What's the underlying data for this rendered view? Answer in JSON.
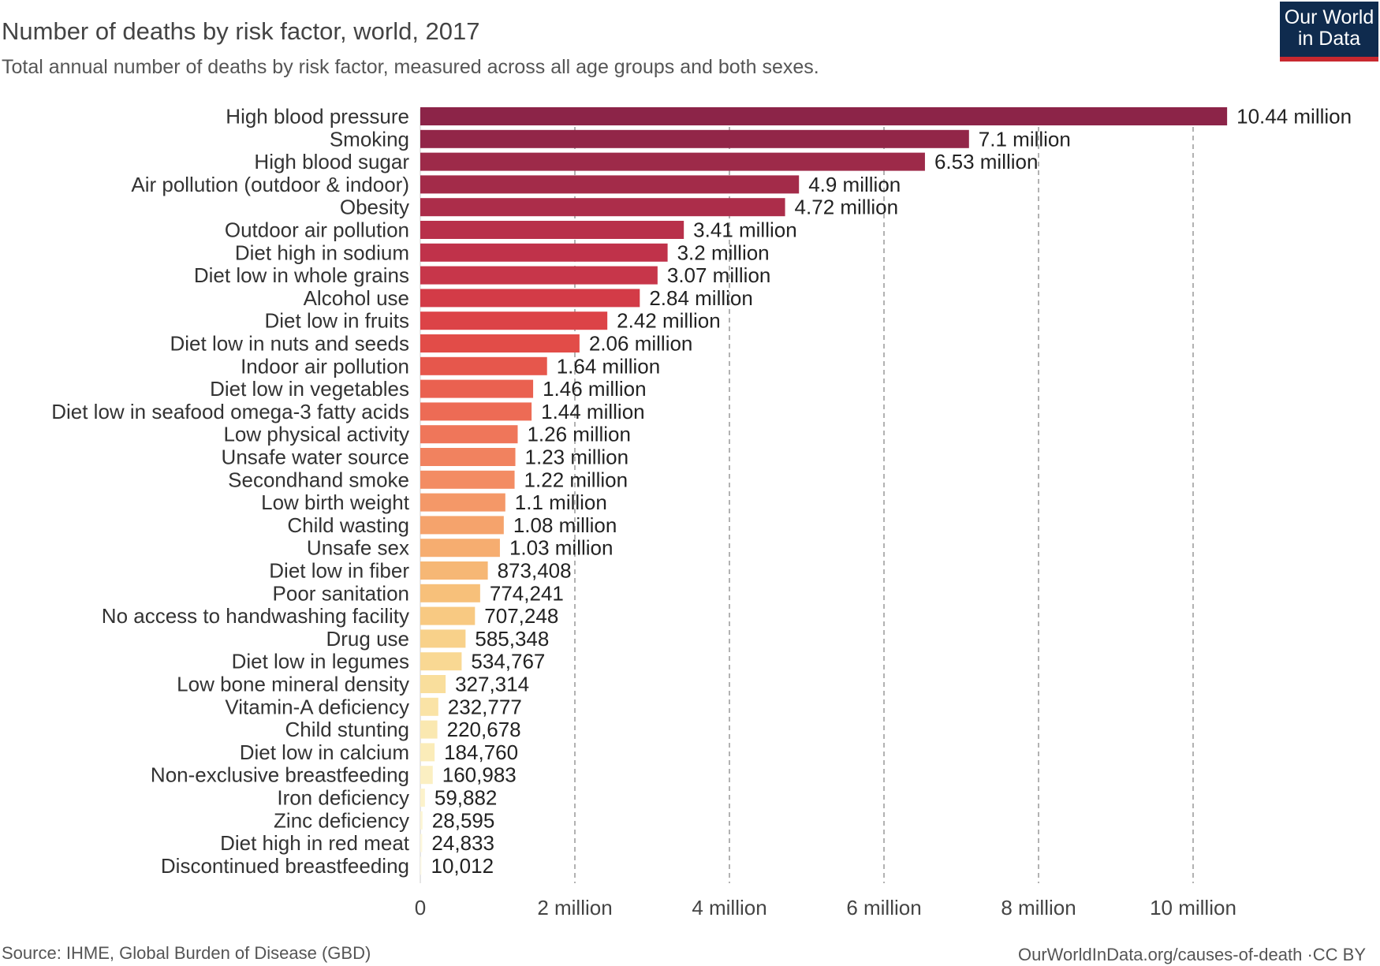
{
  "header": {
    "title": "Number of deaths by risk factor, world, 2017",
    "subtitle": "Total annual number of deaths by risk factor, measured across all age groups and both sexes."
  },
  "logo": {
    "line1": "Our World",
    "line2": "in Data",
    "bg": "#0f2b4e",
    "accent": "#c8282f"
  },
  "footer": {
    "source": "Source: IHME, Global Burden of Disease (GBD)",
    "link": "OurWorldInData.org/causes-of-death ·CC BY"
  },
  "chart_data": {
    "type": "bar",
    "orientation": "horizontal",
    "title": "Number of deaths by risk factor, world, 2017",
    "xlabel": "",
    "ylabel": "",
    "xlim": [
      0,
      11000000
    ],
    "grid": "vertical dashed",
    "x_ticks": [
      0,
      2000000,
      4000000,
      6000000,
      8000000,
      10000000
    ],
    "x_tick_labels": [
      "0",
      "2 million",
      "4 million",
      "6 million",
      "8 million",
      "10 million"
    ],
    "categories": [
      "High blood pressure",
      "Smoking",
      "High blood sugar",
      "Air pollution (outdoor & indoor)",
      "Obesity",
      "Outdoor air pollution",
      "Diet high in sodium",
      "Diet low in whole grains",
      "Alcohol use",
      "Diet low in fruits",
      "Diet low in nuts and seeds",
      "Indoor air pollution",
      "Diet low in vegetables",
      "Diet low in seafood omega-3 fatty acids",
      "Low physical activity",
      "Unsafe water source",
      "Secondhand smoke",
      "Low birth weight",
      "Child wasting",
      "Unsafe sex",
      "Diet low in fiber",
      "Poor sanitation",
      "No access to handwashing facility",
      "Drug use",
      "Diet low in legumes",
      "Low bone mineral density",
      "Vitamin-A deficiency",
      "Child stunting",
      "Diet low in calcium",
      "Non-exclusive breastfeeding",
      "Iron deficiency",
      "Zinc deficiency",
      "Diet high in red meat",
      "Discontinued breastfeeding"
    ],
    "values": [
      10440000,
      7100000,
      6530000,
      4900000,
      4720000,
      3410000,
      3200000,
      3070000,
      2840000,
      2420000,
      2060000,
      1640000,
      1460000,
      1440000,
      1260000,
      1230000,
      1220000,
      1100000,
      1080000,
      1030000,
      873408,
      774241,
      707248,
      585348,
      534767,
      327314,
      232777,
      220678,
      184760,
      160983,
      59882,
      28595,
      24833,
      10012
    ],
    "value_labels": [
      "10.44 million",
      "7.1 million",
      "6.53 million",
      "4.9 million",
      "4.72 million",
      "3.41 million",
      "3.2 million",
      "3.07 million",
      "2.84 million",
      "2.42 million",
      "2.06 million",
      "1.64 million",
      "1.46 million",
      "1.44 million",
      "1.26 million",
      "1.23 million",
      "1.22 million",
      "1.1 million",
      "1.08 million",
      "1.03 million",
      "873,408",
      "774,241",
      "707,248",
      "585,348",
      "534,767",
      "327,314",
      "232,777",
      "220,678",
      "184,760",
      "160,983",
      "59,882",
      "28,595",
      "24,833",
      "10,012"
    ],
    "colors": [
      "#8c2448",
      "#922648",
      "#9d2a49",
      "#a32b49",
      "#ac2d4a",
      "#b8304a",
      "#c0324a",
      "#c7364a",
      "#d33b47",
      "#dc4347",
      "#e24c48",
      "#e6574c",
      "#ea6150",
      "#ed6b55",
      "#ef765a",
      "#f1825f",
      "#f38c63",
      "#f49868",
      "#f5a36c",
      "#f6ad70",
      "#f6b775",
      "#f7c07a",
      "#f8c982",
      "#f8d18a",
      "#f9d893",
      "#f9de9c",
      "#fae3a6",
      "#fae8b0",
      "#fbecb9",
      "#fbefc2",
      "#fcf2cb",
      "#fcf5d4",
      "#fdf7dc",
      "#fdf9e4"
    ]
  }
}
